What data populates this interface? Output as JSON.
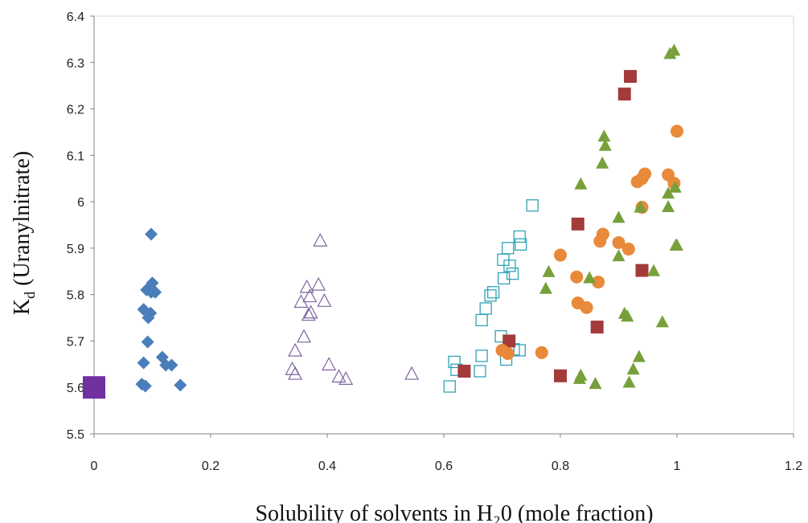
{
  "chart_data": {
    "type": "scatter",
    "title": "",
    "xlabel": "Solubility  of  solvents in H₂0  (mole fraction)",
    "ylabel": {
      "main": "K",
      "sub": "d",
      "rest": " (Uranylnitrate)"
    },
    "xlim": [
      0,
      1.2
    ],
    "ylim": [
      5.5,
      6.4
    ],
    "x_ticks": [
      "0",
      "0.2",
      "0.4",
      "0.6",
      "0.8",
      "1",
      "1.2"
    ],
    "y_ticks": [
      "5.5",
      "5.6",
      "5.7",
      "5.8",
      "5.9",
      "6",
      "6.1",
      "6.2",
      "6.3",
      "6.4"
    ],
    "grid": false,
    "legend": "none",
    "series": [
      {
        "marker": "square-large-filled",
        "color": "#7030a0",
        "points": [
          [
            0.0,
            5.6
          ]
        ]
      },
      {
        "marker": "diamond-filled",
        "color": "#4a7ebb",
        "points": [
          [
            0.098,
            5.93
          ],
          [
            0.1,
            5.825
          ],
          [
            0.09,
            5.81
          ],
          [
            0.105,
            5.805
          ],
          [
            0.098,
            5.805
          ],
          [
            0.085,
            5.768
          ],
          [
            0.097,
            5.76
          ],
          [
            0.093,
            5.75
          ],
          [
            0.092,
            5.698
          ],
          [
            0.117,
            5.665
          ],
          [
            0.123,
            5.648
          ],
          [
            0.133,
            5.648
          ],
          [
            0.085,
            5.653
          ],
          [
            0.088,
            5.603
          ],
          [
            0.082,
            5.607
          ],
          [
            0.148,
            5.605
          ]
        ]
      },
      {
        "marker": "triangle-open",
        "color": "#8064a2",
        "points": [
          [
            0.388,
            5.915
          ],
          [
            0.365,
            5.815
          ],
          [
            0.385,
            5.82
          ],
          [
            0.355,
            5.783
          ],
          [
            0.37,
            5.795
          ],
          [
            0.395,
            5.785
          ],
          [
            0.372,
            5.76
          ],
          [
            0.368,
            5.755
          ],
          [
            0.36,
            5.708
          ],
          [
            0.345,
            5.678
          ],
          [
            0.34,
            5.638
          ],
          [
            0.345,
            5.628
          ],
          [
            0.403,
            5.648
          ],
          [
            0.42,
            5.622
          ],
          [
            0.432,
            5.617
          ],
          [
            0.545,
            5.628
          ]
        ]
      },
      {
        "marker": "square-open",
        "color": "#31a3b6",
        "points": [
          [
            0.752,
            5.992
          ],
          [
            0.73,
            5.925
          ],
          [
            0.732,
            5.908
          ],
          [
            0.71,
            5.9
          ],
          [
            0.702,
            5.875
          ],
          [
            0.713,
            5.862
          ],
          [
            0.718,
            5.845
          ],
          [
            0.703,
            5.835
          ],
          [
            0.685,
            5.805
          ],
          [
            0.68,
            5.798
          ],
          [
            0.672,
            5.77
          ],
          [
            0.665,
            5.745
          ],
          [
            0.698,
            5.71
          ],
          [
            0.73,
            5.68
          ],
          [
            0.72,
            5.682
          ],
          [
            0.707,
            5.66
          ],
          [
            0.665,
            5.668
          ],
          [
            0.618,
            5.655
          ],
          [
            0.622,
            5.638
          ],
          [
            0.662,
            5.635
          ],
          [
            0.61,
            5.602
          ]
        ]
      },
      {
        "marker": "square-filled",
        "color": "#a33b3b",
        "points": [
          [
            0.92,
            6.27
          ],
          [
            0.91,
            6.232
          ],
          [
            0.83,
            5.952
          ],
          [
            0.94,
            5.852
          ],
          [
            0.863,
            5.73
          ],
          [
            0.712,
            5.7
          ],
          [
            0.635,
            5.635
          ],
          [
            0.8,
            5.625
          ]
        ]
      },
      {
        "marker": "circle-filled",
        "color": "#e9893a",
        "points": [
          [
            1.0,
            6.152
          ],
          [
            0.945,
            6.06
          ],
          [
            0.94,
            6.05
          ],
          [
            0.985,
            6.058
          ],
          [
            0.932,
            6.043
          ],
          [
            0.995,
            6.04
          ],
          [
            0.94,
            5.988
          ],
          [
            0.873,
            5.93
          ],
          [
            0.868,
            5.915
          ],
          [
            0.9,
            5.912
          ],
          [
            0.917,
            5.898
          ],
          [
            0.8,
            5.885
          ],
          [
            0.828,
            5.838
          ],
          [
            0.865,
            5.827
          ],
          [
            0.83,
            5.782
          ],
          [
            0.845,
            5.772
          ],
          [
            0.768,
            5.675
          ],
          [
            0.7,
            5.68
          ],
          [
            0.71,
            5.673
          ]
        ]
      },
      {
        "marker": "triangle-filled",
        "color": "#77a03b",
        "points": [
          [
            0.995,
            6.325
          ],
          [
            0.988,
            6.318
          ],
          [
            0.875,
            6.14
          ],
          [
            0.877,
            6.12
          ],
          [
            0.872,
            6.082
          ],
          [
            0.997,
            6.03
          ],
          [
            0.985,
            6.017
          ],
          [
            0.835,
            6.037
          ],
          [
            0.937,
            5.987
          ],
          [
            0.985,
            5.988
          ],
          [
            0.9,
            5.965
          ],
          [
            0.998,
            5.905
          ],
          [
            1.0,
            5.905
          ],
          [
            0.9,
            5.882
          ],
          [
            0.78,
            5.848
          ],
          [
            0.96,
            5.85
          ],
          [
            0.85,
            5.835
          ],
          [
            0.775,
            5.812
          ],
          [
            0.91,
            5.758
          ],
          [
            0.915,
            5.752
          ],
          [
            0.975,
            5.74
          ],
          [
            0.935,
            5.665
          ],
          [
            0.925,
            5.638
          ],
          [
            0.835,
            5.625
          ],
          [
            0.833,
            5.618
          ],
          [
            0.86,
            5.607
          ],
          [
            0.918,
            5.61
          ]
        ]
      }
    ]
  }
}
